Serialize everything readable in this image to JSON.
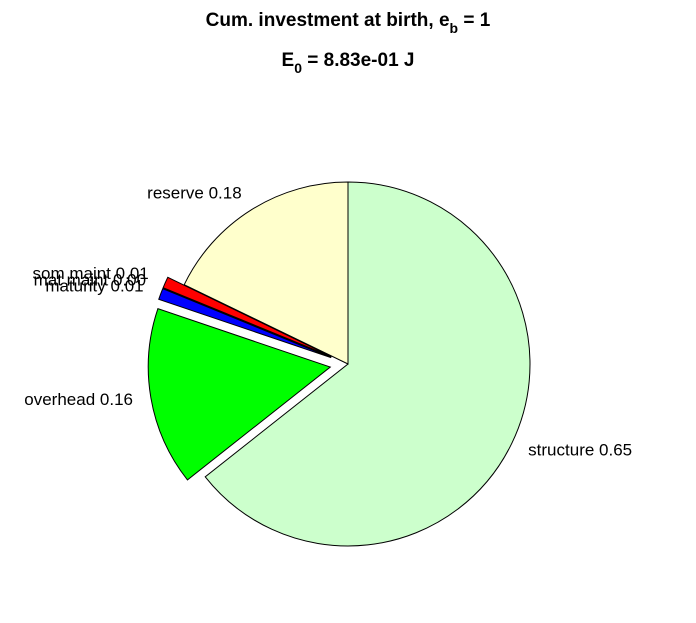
{
  "chart_data": {
    "type": "pie",
    "title": [
      "Cum. investment at birth, e",
      "b",
      " = 1"
    ],
    "subtitle": [
      "E",
      "0",
      " = 8.83e-01 J"
    ],
    "categories": [
      "structure",
      "overhead",
      "maturity",
      "mat maint",
      "som maint",
      "reserve"
    ],
    "values": [
      0.65,
      0.16,
      0.01,
      0,
      0.01,
      0.18
    ],
    "value_labels": [
      "0.65",
      "0.16",
      "0.01",
      "0.00",
      "0.01",
      "0.18"
    ],
    "colors": [
      "#ccffcc",
      "#00ff00",
      "#0000ff",
      "#ff00ff",
      "#ff0000",
      "#ffffcc"
    ],
    "explode": [
      false,
      true,
      true,
      true,
      true,
      false
    ]
  }
}
